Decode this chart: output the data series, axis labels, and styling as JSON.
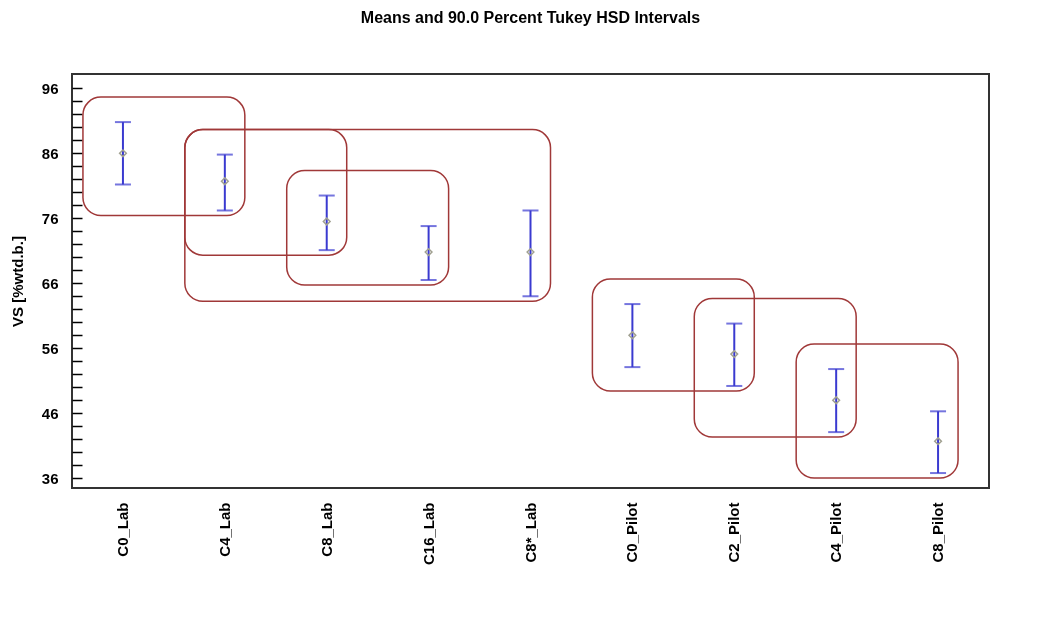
{
  "chart_data": {
    "type": "scatter",
    "title": "Means and 90.0 Percent Tukey HSD Intervals",
    "ylabel": "VS [%wtd.b.]",
    "categories": [
      "C0_Lab",
      "C4_Lab",
      "C8_Lab",
      "C16_Lab",
      "C8*_Lab",
      "C0_Pilot",
      "C2_Pilot",
      "C4_Pilot",
      "C8_Pilot"
    ],
    "series": [
      {
        "color": "#a0a090",
        "values": [
          86,
          81.7,
          75.5,
          70.8,
          70.8,
          58,
          55.1,
          48,
          41.7
        ],
        "errors": [
          [
            81.2,
            90.8
          ],
          [
            77.2,
            85.8
          ],
          [
            71.1,
            79.5
          ],
          [
            66.5,
            74.8
          ],
          [
            64,
            77.2
          ],
          [
            53.1,
            62.8
          ],
          [
            50.2,
            59.8
          ],
          [
            43.1,
            52.8
          ],
          [
            36.8,
            46.3
          ]
        ]
      }
    ],
    "marker": "diamond",
    "grid": false,
    "ylim": [
      34.5,
      98.2
    ],
    "yticks": [
      36,
      {
        "value": 38,
        "label": null
      },
      {
        "value": 40,
        "label": null
      },
      {
        "value": 42,
        "label": null
      },
      {
        "value": 44,
        "label": null
      },
      46,
      {
        "value": 48,
        "label": null
      },
      {
        "value": 50,
        "label": null
      },
      {
        "value": 52,
        "label": null
      },
      {
        "value": 54,
        "label": null
      },
      56,
      {
        "value": 58,
        "label": null
      },
      {
        "value": 60,
        "label": null
      },
      {
        "value": 62,
        "label": null
      },
      {
        "value": 64,
        "label": null
      },
      66,
      {
        "value": 68,
        "label": null
      },
      {
        "value": 70,
        "label": null
      },
      {
        "value": 72,
        "label": null
      },
      {
        "value": 74,
        "label": null
      },
      76,
      {
        "value": 78,
        "label": null
      },
      {
        "value": 80,
        "label": null
      },
      {
        "value": 82,
        "label": null
      },
      {
        "value": 84,
        "label": null
      },
      86,
      {
        "value": 88,
        "label": null
      },
      {
        "value": 90,
        "label": null
      },
      {
        "value": 92,
        "label": null
      },
      {
        "value": 94,
        "label": null
      },
      96
    ]
  }
}
